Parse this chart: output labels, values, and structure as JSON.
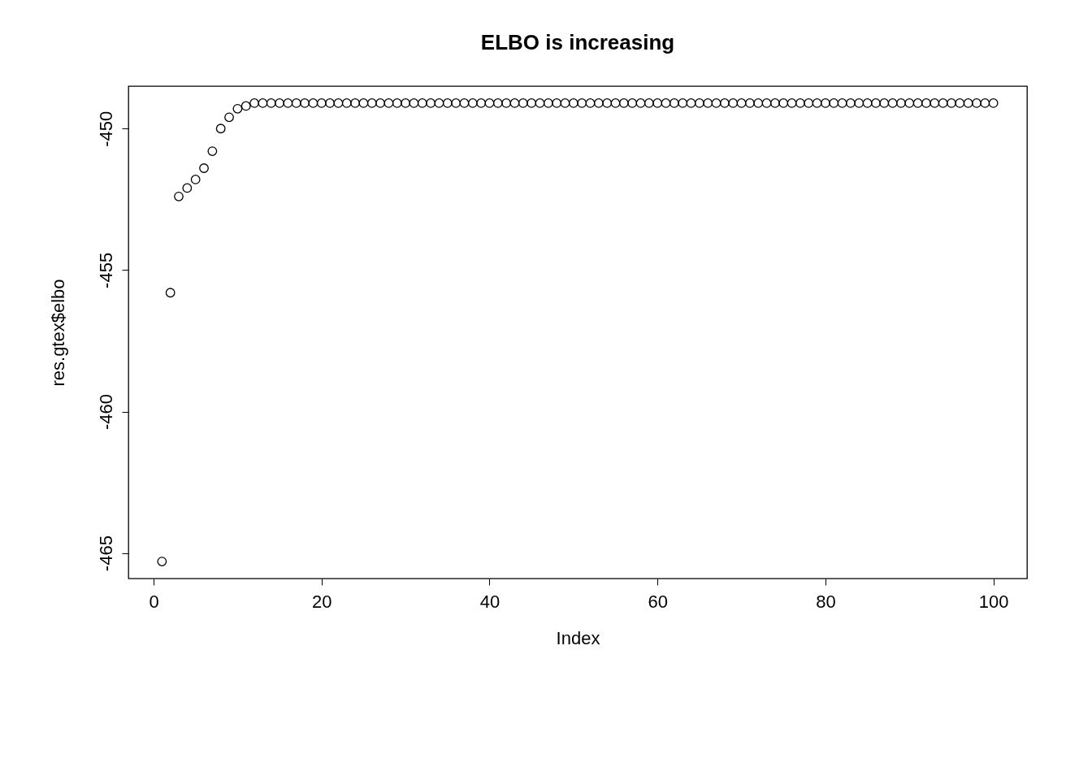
{
  "chart_data": {
    "type": "scatter",
    "title": "ELBO is increasing",
    "xlabel": "Index",
    "ylabel": "res.gtex$elbo",
    "x": [
      1,
      2,
      3,
      4,
      5,
      6,
      7,
      8,
      9,
      10,
      11,
      12,
      13,
      14,
      15,
      16,
      17,
      18,
      19,
      20,
      21,
      22,
      23,
      24,
      25,
      26,
      27,
      28,
      29,
      30,
      31,
      32,
      33,
      34,
      35,
      36,
      37,
      38,
      39,
      40,
      41,
      42,
      43,
      44,
      45,
      46,
      47,
      48,
      49,
      50,
      51,
      52,
      53,
      54,
      55,
      56,
      57,
      58,
      59,
      60,
      61,
      62,
      63,
      64,
      65,
      66,
      67,
      68,
      69,
      70,
      71,
      72,
      73,
      74,
      75,
      76,
      77,
      78,
      79,
      80,
      81,
      82,
      83,
      84,
      85,
      86,
      87,
      88,
      89,
      90,
      91,
      92,
      93,
      94,
      95,
      96,
      97,
      98,
      99,
      100
    ],
    "values": [
      -465.3,
      -455.8,
      -452.4,
      -452.1,
      -451.8,
      -451.4,
      -450.8,
      -450.0,
      -449.6,
      -449.3,
      -449.2,
      -449.1,
      -449.1,
      -449.1,
      -449.1,
      -449.1,
      -449.1,
      -449.1,
      -449.1,
      -449.1,
      -449.1,
      -449.1,
      -449.1,
      -449.1,
      -449.1,
      -449.1,
      -449.1,
      -449.1,
      -449.1,
      -449.1,
      -449.1,
      -449.1,
      -449.1,
      -449.1,
      -449.1,
      -449.1,
      -449.1,
      -449.1,
      -449.1,
      -449.1,
      -449.1,
      -449.1,
      -449.1,
      -449.1,
      -449.1,
      -449.1,
      -449.1,
      -449.1,
      -449.1,
      -449.1,
      -449.1,
      -449.1,
      -449.1,
      -449.1,
      -449.1,
      -449.1,
      -449.1,
      -449.1,
      -449.1,
      -449.1,
      -449.1,
      -449.1,
      -449.1,
      -449.1,
      -449.1,
      -449.1,
      -449.1,
      -449.1,
      -449.1,
      -449.1,
      -449.1,
      -449.1,
      -449.1,
      -449.1,
      -449.1,
      -449.1,
      -449.1,
      -449.1,
      -449.1,
      -449.1,
      -449.1,
      -449.1,
      -449.1,
      -449.1,
      -449.1,
      -449.1,
      -449.1,
      -449.1,
      -449.1,
      -449.1,
      -449.1,
      -449.1,
      -449.1,
      -449.1,
      -449.1,
      -449.1,
      -449.1,
      -449.1,
      -449.1,
      -449.1
    ],
    "color": "#000000",
    "marker": "circle",
    "grid": false,
    "xlim": [
      -3,
      104
    ],
    "ylim": [
      -465.9,
      -448.5
    ],
    "xticks": [
      0,
      20,
      40,
      60,
      80,
      100
    ],
    "yticks": [
      -465,
      -460,
      -455,
      -450
    ]
  }
}
